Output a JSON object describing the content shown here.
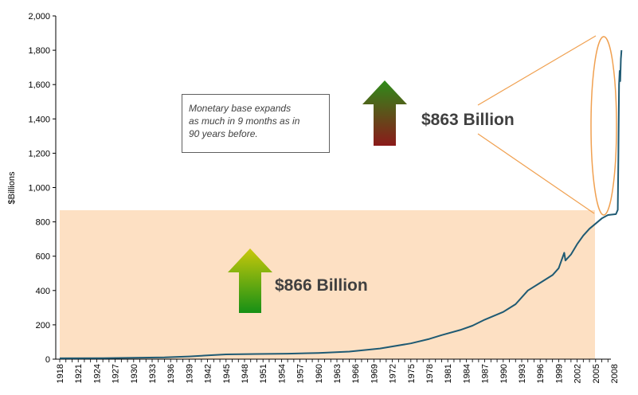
{
  "chart_data": {
    "type": "line",
    "title": "",
    "xlabel": "",
    "ylabel": "$Billions",
    "ylim": [
      0,
      2000
    ],
    "y_ticks": [
      "0",
      "200",
      "400",
      "600",
      "800",
      "1,000",
      "1,200",
      "1,400",
      "1,600",
      "1,800",
      "2,000"
    ],
    "x_ticks": [
      "1918",
      "1921",
      "1924",
      "1927",
      "1930",
      "1933",
      "1936",
      "1939",
      "1942",
      "1945",
      "1948",
      "1951",
      "1954",
      "1957",
      "1960",
      "1963",
      "1966",
      "1969",
      "1972",
      "1975",
      "1978",
      "1981",
      "1984",
      "1987",
      "1990",
      "1993",
      "1996",
      "1999",
      "2002",
      "2005",
      "2008"
    ],
    "grid": false,
    "legend": "none",
    "series": [
      {
        "color": "#1f5a73",
        "x": [
          1918,
          1925,
          1930,
          1935,
          1939,
          1942,
          1945,
          1950,
          1955,
          1960,
          1965,
          1970,
          1975,
          1978,
          1980,
          1983,
          1985,
          1987,
          1990,
          1992,
          1994,
          1996,
          1998,
          1999,
          1999.9,
          2000.1,
          2001,
          2002,
          2003,
          2004,
          2005,
          2006,
          2007,
          2008.3,
          2008.6,
          2008.7,
          2008.8,
          2008.9,
          2009.0,
          2009.1,
          2009.2
        ],
        "y": [
          5,
          6,
          8,
          10,
          16,
          22,
          28,
          30,
          32,
          36,
          44,
          62,
          92,
          118,
          140,
          170,
          195,
          230,
          275,
          320,
          400,
          445,
          490,
          530,
          620,
          575,
          610,
          670,
          720,
          760,
          790,
          820,
          840,
          845,
          870,
          1200,
          1600,
          1680,
          1620,
          1750,
          1800
        ]
      }
    ],
    "annotations": {
      "note": "Monetary base expands\nas much in 9 months as in\n90 years before.",
      "upper_label": "$863 Billion",
      "lower_label": "$866 Billion"
    },
    "colors": {
      "shade_region": "#fde0c3",
      "callout_ellipse": "#f0a050",
      "upper_arrow_top": "#2e8b1a",
      "upper_arrow_bottom": "#8b1a1a",
      "lower_arrow_top": "#c8c80a",
      "lower_arrow_bottom": "#169016"
    }
  }
}
